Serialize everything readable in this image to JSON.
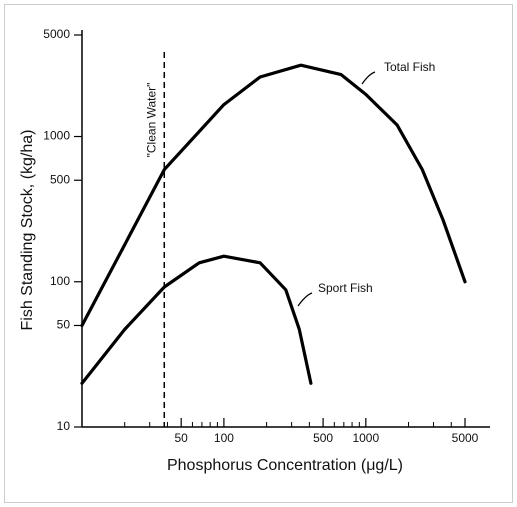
{
  "chart_data": {
    "type": "line",
    "log_x": true,
    "log_y": true,
    "x_label": "Phosphorus Concentration (μg/L)",
    "y_label": "Fish Standing Stock, (kg/ha)",
    "xlim": [
      10,
      7500
    ],
    "ylim": [
      10,
      5000
    ],
    "xticks": [
      50,
      100,
      500,
      1000,
      5000
    ],
    "minor_xticks": [
      20,
      30,
      40,
      60,
      70,
      80,
      90,
      200,
      300,
      400,
      600,
      700,
      800,
      900,
      2000,
      3000,
      4000
    ],
    "yticks": [
      10,
      50,
      100,
      500,
      1000,
      5000
    ],
    "series": [
      {
        "name": "Total Fish",
        "color": "#000000",
        "x": [
          10,
          20,
          38,
          100,
          180,
          349,
          670,
          1000,
          1660,
          2500,
          3500,
          5000
        ],
        "values": [
          50,
          180,
          592,
          1660,
          2570,
          3100,
          2670,
          1950,
          1200,
          592,
          267,
          100
        ]
      },
      {
        "name": "Sport Fish",
        "color": "#000000",
        "x": [
          10,
          20,
          38,
          67,
          100,
          180,
          273,
          340,
          410
        ],
        "values": [
          20,
          47,
          92,
          135,
          150,
          135,
          88,
          47,
          20
        ]
      }
    ],
    "annotations": [
      {
        "text": "\"Clean Water\"",
        "x": 38
      }
    ]
  }
}
